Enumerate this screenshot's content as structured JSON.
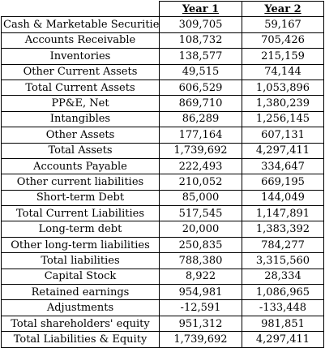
{
  "header": {
    "col1": "",
    "col2": "Year 1",
    "col3": "Year 2"
  },
  "rows": [
    {
      "label": "Cash & Marketable Securities",
      "y1": "309,705",
      "y2": "59,167"
    },
    {
      "label": "Accounts Receivable",
      "y1": "108,732",
      "y2": "705,426"
    },
    {
      "label": "Inventories",
      "y1": "138,577",
      "y2": "215,159"
    },
    {
      "label": "Other Current Assets",
      "y1": "49,515",
      "y2": "74,144"
    },
    {
      "label": "Total Current Assets",
      "y1": "606,529",
      "y2": "1,053,896"
    },
    {
      "label": "PP&E, Net",
      "y1": "869,710",
      "y2": "1,380,239"
    },
    {
      "label": "Intangibles",
      "y1": "86,289",
      "y2": "1,256,145"
    },
    {
      "label": "Other Assets",
      "y1": "177,164",
      "y2": "607,131"
    },
    {
      "label": "Total Assets",
      "y1": "1,739,692",
      "y2": "4,297,411"
    },
    {
      "label": "Accounts Payable",
      "y1": "222,493",
      "y2": "334,647"
    },
    {
      "label": "Other current liabilities",
      "y1": "210,052",
      "y2": "669,195"
    },
    {
      "label": "Short-term Debt",
      "y1": "85,000",
      "y2": "144,049"
    },
    {
      "label": "Total Current Liabilities",
      "y1": "517,545",
      "y2": "1,147,891"
    },
    {
      "label": "Long-term debt",
      "y1": "20,000",
      "y2": "1,383,392"
    },
    {
      "label": "Other long-term liabilities",
      "y1": "250,835",
      "y2": "784,277"
    },
    {
      "label": "Total liabilities",
      "y1": "788,380",
      "y2": "3,315,560"
    },
    {
      "label": "Capital Stock",
      "y1": "8,922",
      "y2": "28,334"
    },
    {
      "label": "Retained earnings",
      "y1": "954,981",
      "y2": "1,086,965"
    },
    {
      "label": "Adjustments",
      "y1": "-12,591",
      "y2": "-133,448"
    },
    {
      "label": "Total shareholders' equity",
      "y1": "951,312",
      "y2": "981,851"
    },
    {
      "label": "Total Liabilities & Equity",
      "y1": "1,739,692",
      "y2": "4,297,411"
    }
  ]
}
